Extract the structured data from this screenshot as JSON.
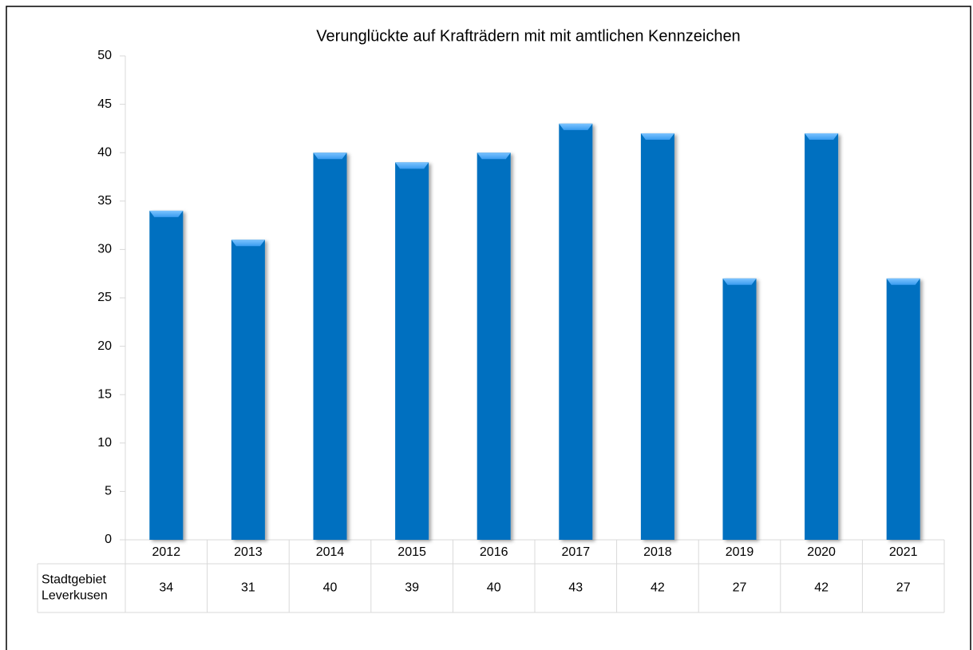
{
  "chart_data": {
    "type": "bar",
    "title": "Verunglückte auf Krafträdern mit mit amtlichen Kennzeichen",
    "categories": [
      "2012",
      "2013",
      "2014",
      "2015",
      "2016",
      "2017",
      "2018",
      "2019",
      "2020",
      "2021"
    ],
    "series": [
      {
        "name": "Stadtgebiet Leverkusen",
        "color": "#0070c0",
        "values": [
          34,
          31,
          40,
          39,
          40,
          43,
          42,
          27,
          42,
          27
        ]
      }
    ],
    "ylim": [
      0,
      50
    ],
    "yticks": [
      0,
      5,
      10,
      15,
      20,
      25,
      30,
      35,
      40,
      45,
      50
    ],
    "grid": false
  }
}
